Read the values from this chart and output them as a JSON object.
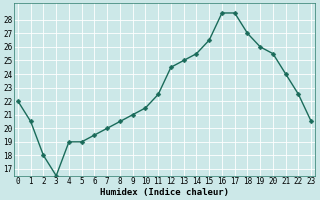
{
  "x": [
    0,
    1,
    2,
    3,
    4,
    5,
    6,
    7,
    8,
    9,
    10,
    11,
    12,
    13,
    14,
    15,
    16,
    17,
    18,
    19,
    20,
    21,
    22,
    23
  ],
  "y": [
    22,
    20.5,
    18,
    16.5,
    19,
    19,
    19.5,
    20,
    20.5,
    21,
    21.5,
    22.5,
    24.5,
    25,
    25.5,
    26.5,
    28.5,
    28.5,
    27,
    26,
    25.5,
    24,
    22.5,
    20.5
  ],
  "xlabel": "Humidex (Indice chaleur)",
  "bg_color": "#cce8e8",
  "line_color": "#1a6b5a",
  "grid_color": "#ffffff",
  "ylim_min": 16.5,
  "ylim_max": 29.2,
  "xlim_min": -0.3,
  "xlim_max": 23.3,
  "yticks": [
    17,
    18,
    19,
    20,
    21,
    22,
    23,
    24,
    25,
    26,
    27,
    28
  ],
  "xticks": [
    0,
    1,
    2,
    3,
    4,
    5,
    6,
    7,
    8,
    9,
    10,
    11,
    12,
    13,
    14,
    15,
    16,
    17,
    18,
    19,
    20,
    21,
    22,
    23
  ],
  "tick_fontsize": 5.5,
  "xlabel_fontsize": 6.5,
  "marker_size": 2.5,
  "linewidth": 1.0
}
